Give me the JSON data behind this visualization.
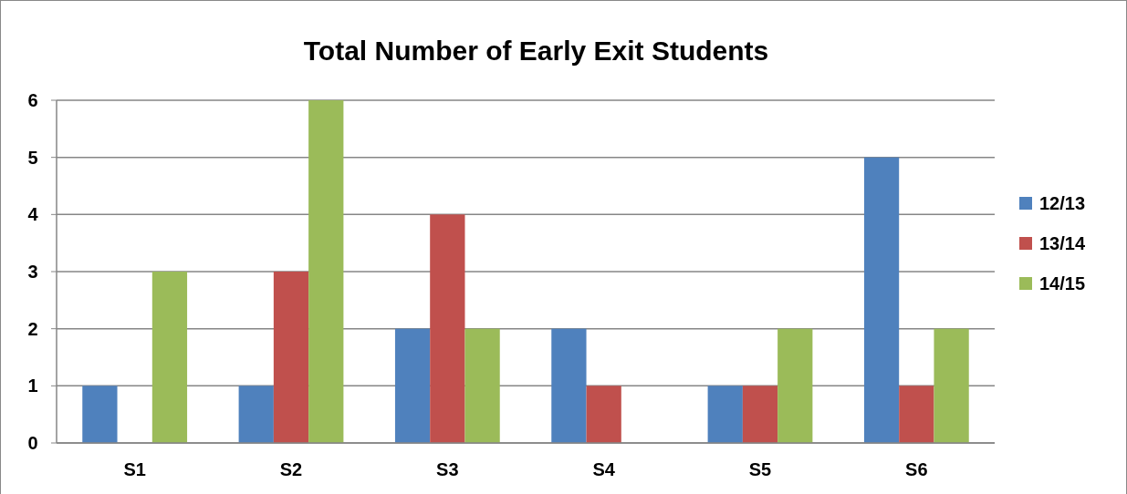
{
  "chart_data": {
    "type": "bar",
    "title": "Total Number of Early Exit Students",
    "categories": [
      "S1",
      "S2",
      "S3",
      "S4",
      "S5",
      "S6"
    ],
    "series": [
      {
        "name": "12/13",
        "color": "#4f81bd",
        "values": [
          1,
          1,
          2,
          2,
          1,
          5
        ]
      },
      {
        "name": "13/14",
        "color": "#c0504d",
        "values": [
          0,
          3,
          4,
          1,
          1,
          1
        ]
      },
      {
        "name": "14/15",
        "color": "#9bbb59",
        "values": [
          3,
          6,
          2,
          0,
          2,
          2
        ]
      }
    ],
    "ylim": [
      0,
      6
    ],
    "yticks": [
      0,
      1,
      2,
      3,
      4,
      5,
      6
    ],
    "grid": "y",
    "legend": "right"
  }
}
